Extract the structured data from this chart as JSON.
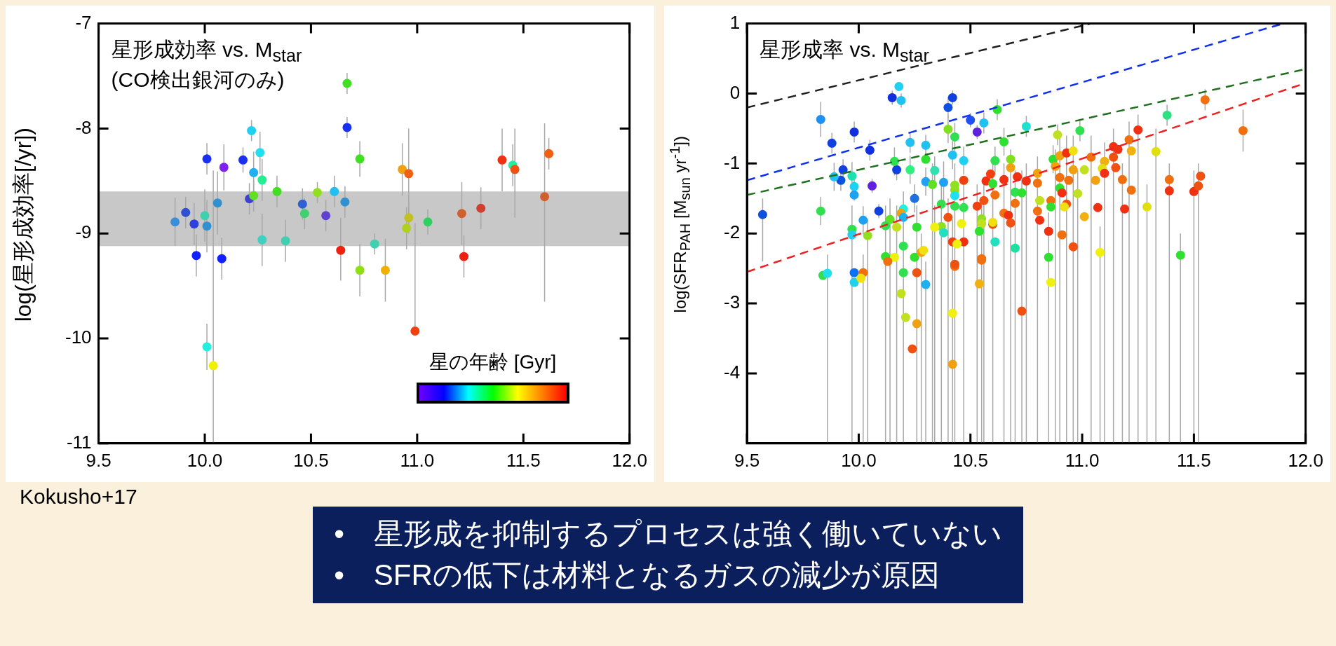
{
  "chart_data": [
    {
      "type": "scatter",
      "title": "星形成効率 vs. M$_{star}$",
      "subtitle": "(CO検出銀河のみ)",
      "ylabel": "log(星形成効率[/yr])",
      "clabel": "星の年齢 [Gyr]",
      "marker": "circle",
      "xlim": [
        9.5,
        12.0
      ],
      "ylim": [
        -11,
        -7
      ],
      "xticks": [
        9.5,
        {
          "value": 10,
          "label": "10.0"
        },
        10.5,
        {
          "value": 11,
          "label": "11.0"
        },
        11.5,
        {
          "value": 12,
          "label": "12.0"
        }
      ],
      "yticks": [
        -11,
        -10,
        -9,
        -8,
        -7
      ],
      "bands": [
        {
          "axis": "y",
          "from": -9.12,
          "to": -8.6,
          "color": "#c8c8c8"
        }
      ],
      "annotations": [
        "Kokusho+17"
      ],
      "series": [
        {
          "type": "scatter",
          "x": [
            9.86,
            9.91,
            9.95,
            9.96,
            10.0,
            10.01,
            10.01,
            10.06,
            10.08,
            10.09,
            10.18,
            10.21,
            10.22,
            10.23,
            10.23,
            10.26,
            10.27,
            10.27,
            10.34,
            10.38,
            null,
            10.46,
            10.47,
            10.53,
            10.57,
            10.61,
            10.64,
            10.66,
            10.67,
            10.67,
            10.73,
            null,
            10.73,
            10.8,
            10.85,
            10.93,
            10.96,
            10.96,
            10.95,
            11.05,
            11.21,
            11.22,
            11.3,
            11.4,
            11.45,
            11.46,
            11.6,
            11.62,
            10.99,
            10.01,
            10.04
          ],
          "values": [
            -8.89,
            -8.8,
            -8.91,
            -9.21,
            -8.83,
            -8.29,
            -8.93,
            -8.71,
            -9.24,
            -8.37,
            -8.3,
            -8.67,
            -8.02,
            -8.42,
            -8.64,
            -8.23,
            -8.49,
            -9.06,
            -8.6,
            -9.07,
            null,
            -8.72,
            -8.81,
            -8.61,
            -8.83,
            -8.6,
            -9.16,
            -8.7,
            -7.99,
            -7.57,
            -8.29,
            null,
            -9.35,
            -9.1,
            -9.35,
            -8.39,
            -8.43,
            -8.85,
            -8.95,
            -8.89,
            -8.81,
            -9.22,
            -8.76,
            -8.3,
            -8.35,
            -8.39,
            -8.65,
            -8.24,
            -9.93,
            -10.08,
            -10.26
          ],
          "colors": [
            "#3a8fd8",
            "#3050d0",
            "#3040e0",
            "#1020ff",
            "#40d0b0",
            "#1a30f0",
            "#3090d0",
            "#3090d0",
            "#1020ff",
            "#8020f0",
            "#1a30f0",
            "#4040d0",
            "#20d0f0",
            "#20b0f0",
            "#60e020",
            "#20e0f0",
            "#20f090",
            "#40d0c0",
            "#40e020",
            "#40d0b0",
            "#3090d0",
            "#3060d0",
            "#40d070",
            "#90e020",
            "#6040d0",
            "#20c0f0",
            "#f02010",
            "#3090d0",
            "#1a30f0",
            "#40e020",
            "#40e020",
            "#f0b000",
            "#90e010",
            "#40d0b0",
            "#f0b000",
            "#f0a010",
            "#f06010",
            "#c0c020",
            "#b0d020",
            "#30d060",
            "#d06030",
            "#f02010",
            "#d04030",
            "#f03010",
            "#20f0a0",
            "#f05010",
            "#d06030",
            "#f06010",
            "#f04010",
            "#20f0e0",
            "#f0f000"
          ],
          "errors": [
            0.23,
            0.15,
            0.2,
            0.2,
            0.25,
            0.15,
            0.25,
            0.3,
            0.2,
            0.22,
            0.12,
            0.15,
            0.1,
            0.2,
            0.15,
            0.2,
            0.2,
            0.25,
            0.15,
            0.2,
            null,
            0.15,
            0.15,
            0.1,
            0.15,
            0.15,
            [
              -9.45,
              -8.85
            ],
            0.15,
            0.1,
            0.1,
            0.17,
            null,
            0.25,
            0.1,
            0.3,
            0.25,
            [
              -8.9,
              -8.0
            ],
            [
              -9.0,
              -8.7
            ],
            0.2,
            0.12,
            0.3,
            0.2,
            0.2,
            0.3,
            0.2,
            [
              -8.85,
              -8.0
            ],
            [
              -9.65,
              -7.95
            ],
            0.15,
            [
              -9.95,
              -8.9
            ],
            0.22,
            [
              -11,
              -8.4
            ]
          ]
        }
      ]
    },
    {
      "type": "scatter",
      "title": "星形成率 vs. M$_{star}$",
      "ylabel": "log(SFR$_{PAH}$ [M$_{sun}$ yr$^{-1}$])",
      "marker": "circle",
      "xlim": [
        9.5,
        12.0
      ],
      "ylim": [
        -5,
        1
      ],
      "xticks": [
        9.5,
        {
          "value": 10,
          "label": "10.0"
        },
        10.5,
        {
          "value": 11,
          "label": "11.0"
        },
        11.5,
        {
          "value": 12,
          "label": "12.0"
        }
      ],
      "yticks": [
        -4,
        -3,
        -2,
        -1,
        0,
        1
      ],
      "series": [
        {
          "type": "scatter",
          "x": [
            9.83,
            9.98,
            10.15,
            10.18,
            10.19,
            10.42,
            10.4,
            10.62,
            10.5,
            10.56,
            10.53,
            9.57,
            9.88,
            10.05,
            9.93,
            9.92,
            9.89,
            9.97,
            9.98,
            9.98,
            10.06,
            10.09,
            9.83,
            10.02,
            9.97,
            9.97,
            10.04,
            10.17,
            10.23,
            10.16,
            10.23,
            10.3,
            10.3,
            10.34,
            10.4,
            10.43,
            10.42,
            10.47,
            10.3,
            10.38,
            10.33,
            10.43,
            10.43,
            10.43,
            10.47,
            10.25,
            10.2,
            10.19,
            10.2,
            10.14,
            10.12,
            10.17,
            10.26,
            10.37,
            10.43,
            10.47,
            10.4,
            10.37,
            10.34,
            10.38,
            10.46,
            10.2,
            10.12,
            10.16,
            10.13,
            10.25,
            10.28,
            10.29,
            10.42,
            10.47,
            10.44,
            10.43,
            10.53,
            10.56,
            10.57,
            10.59,
            10.6,
            10.65,
            10.61,
            10.61,
            10.55,
            10.55,
            10.54,
            10.6,
            10.6,
            10.61,
            10.55,
            null,
            10.65,
            10.68,
            10.68,
            10.71,
            10.75,
            10.7,
            10.73,
            10.7,
            10.65,
            10.67,
            10.68,
            10.7,
            10.75,
            10.8,
            10.8,
            10.81,
            10.8,
            10.81,
            10.85,
            10.86,
            10.86,
            10.85,
            10.87,
            10.88,
            10.9,
            10.93,
            10.96,
            10.89,
            10.99,
            10.9,
            10.9,
            10.91,
            10.94,
            10.96,
            11.01,
            10.98,
            10.93,
            10.92,
            10.91,
            10.96,
            11.01,
            11.08,
            11.04,
            11.06,
            11.1,
            11.09,
            11.1,
            11.14,
            11.16,
            11.14,
            11.15,
            11.18,
            11.22,
            11.07,
            11.19,
            11.21,
            11.25,
            11.22,
            11.33,
            11.29,
            11.39,
            11.39,
            11.38,
            11.44,
            11.5,
            11.52,
            11.53,
            11.55,
            11.72,
            9.84,
            9.86,
            9.98,
            9.98,
            10.02,
            10.01,
            10.2,
            10.26,
            10.3,
            10.19,
            10.21,
            10.26,
            10.24,
            10.42,
            10.42,
            10.43,
            10.55,
            10.54,
            10.73,
            10.86
          ],
          "values": [
            -0.37,
            -0.55,
            -0.06,
            0.1,
            -0.1,
            -0.06,
            -0.2,
            -0.23,
            -0.38,
            -0.42,
            -0.55,
            -1.73,
            -0.71,
            -0.81,
            -1.09,
            -1.24,
            -1.19,
            -1.18,
            -1.33,
            -1.45,
            -1.32,
            -1.68,
            -1.68,
            -1.81,
            -1.94,
            -2.02,
            -2.03,
            -1.09,
            -0.7,
            -0.97,
            -1.09,
            -0.74,
            -0.94,
            -1.1,
            -0.51,
            -0.62,
            -0.88,
            -0.96,
            -1.26,
            -1.27,
            -1.3,
            -1.31,
            -1.38,
            -1.46,
            -1.24,
            -1.5,
            -1.65,
            -1.71,
            -1.77,
            -1.8,
            -1.89,
            -1.91,
            -1.91,
            -1.58,
            -1.61,
            -1.63,
            -1.77,
            -1.9,
            -1.91,
            -1.99,
            -1.86,
            -2.18,
            -2.33,
            -2.34,
            -2.4,
            -2.34,
            -2.27,
            -2.24,
            -2.12,
            -2.12,
            -2.15,
            -2.47,
            -1.61,
            -1.53,
            -1.25,
            -1.15,
            -1.29,
            -1.23,
            -0.96,
            -1.45,
            -1.79,
            -1.86,
            -1.97,
            -1.87,
            -1.84,
            -2.12,
            -2.38,
            null,
            -0.69,
            -0.94,
            -1.06,
            -1.19,
            -1.25,
            -1.41,
            -1.42,
            -1.57,
            -1.71,
            -1.74,
            -1.85,
            -2.21,
            -0.47,
            -1.14,
            -1.28,
            -1.53,
            -1.68,
            -1.81,
            -1.97,
            -1.53,
            -1.62,
            -2.34,
            -0.94,
            -1.04,
            -0.89,
            -0.85,
            -0.82,
            -0.59,
            -0.53,
            -1.2,
            -1.35,
            -1.42,
            -1.24,
            -1.09,
            -1.09,
            -1.43,
            -1.58,
            -1.62,
            -2.02,
            -2.19,
            -1.76,
            -2.27,
            -0.91,
            -1.24,
            -0.97,
            -1.07,
            -1.14,
            -0.76,
            -0.8,
            -0.91,
            -1.06,
            -1.23,
            -1.38,
            -1.63,
            -1.65,
            -0.66,
            -0.52,
            -0.82,
            -0.83,
            -1.62,
            -1.23,
            -1.39,
            -0.31,
            -2.31,
            -1.4,
            -1.32,
            -1.18,
            -0.09,
            -0.53,
            -2.6,
            -2.57,
            -2.56,
            -2.7,
            -2.56,
            -2.64,
            -2.56,
            -2.56,
            -2.73,
            -2.86,
            -3.2,
            -3.29,
            -3.65,
            -3.14,
            -3.87,
            -2.44,
            -2.36,
            -2.72,
            -3.11,
            -2.7
          ],
          "colors": [
            "#2090f0",
            "#1030e0",
            "#1030e0",
            "#20d0f0",
            "#20c0f0",
            "#1040e0",
            "#1050e0",
            "#30e030",
            "#2050f0",
            "#20c0f0",
            "#6020e0",
            "#1050e0",
            "#1040e0",
            "#1030e0",
            "#1040e0",
            "#1050e0",
            "#20c0f0",
            "#20e0b0",
            "#20d0f0",
            "#20a0f0",
            "#6020e0",
            "#1040e0",
            "#30e050",
            "#20a0f0",
            "#30e050",
            "#20d0f0",
            "#90e020",
            "#1040e0",
            "#20c0f0",
            "#30e050",
            "#30f080",
            "#20c0f0",
            "#30e030",
            "#30e0b0",
            "#80e020",
            "#30e050",
            "#20c0f0",
            "#20d0f0",
            "#20a0f0",
            "#20a0f0",
            "#60e020",
            "#90e020",
            "#90e020",
            "#20e0f0",
            "#f04010",
            "#2070e0",
            "#20f0e0",
            "#f0a010",
            "#20b0f0",
            "#60e020",
            "#30e050",
            "#c0e020",
            "#30e030",
            "#30e050",
            "#30e050",
            "#30e050",
            "#f05010",
            "#90e020",
            "#f0f010",
            "#20e0c0",
            "#f0f010",
            "#30e050",
            "#30e030",
            "#f0f010",
            "#f07010",
            "#30e030",
            "#f0a010",
            "#f0e010",
            "#f04010",
            "#f03010",
            "#f0f010",
            "#f07010",
            "#f04010",
            "#f05010",
            "#f03010",
            "#f04010",
            "#30e030",
            "#f03010",
            "#30e050",
            "#f07010",
            "#90e020",
            "#c0e020",
            "#30e030",
            "#f05010",
            "#f0e010",
            "#20e0c0",
            "#f07010",
            "#2090f0",
            "#30e030",
            "#80e020",
            "#f0a010",
            "#f03010",
            "#f03010",
            "#30e050",
            "#30e030",
            "#f07010",
            "#f07010",
            "#f03010",
            "#f05010",
            "#20e0a0",
            "#20e0d0",
            "#f0a010",
            "#f07010",
            "#c0e020",
            "#f07010",
            "#f03010",
            "#f03010",
            "#f07010",
            "#30e030",
            "#30e030",
            "#30e030",
            "#f0a010",
            "#f0a010",
            "#f03010",
            "#f0e010",
            "#c0e020",
            "#30e050",
            "#f07010",
            "#30e030",
            "#f03010",
            "#f07010",
            "#f0a010",
            "#c0e020",
            "#c0e020",
            "#f05010",
            "#f0e010",
            "#f07010",
            "#f05010",
            "#f0b010",
            "#f0f010",
            "#f07010",
            "#f0a010",
            "#f0b010",
            "#e0e010",
            "#f03010",
            "#f03010",
            "#f03010",
            "#f05010",
            "#f05010",
            "#f07010",
            "#f07010",
            "#f03010",
            "#f03010",
            "#f07010",
            "#f03010",
            "#f0b010",
            "#e0e010",
            "#e0e010",
            "#f07010",
            "#f03010",
            "#30e080",
            "#30e030",
            "#f03010",
            "#f05010",
            "#f05010",
            "#f07010",
            "#f07010",
            "#30e050",
            "#20e0f0",
            "#1070f0",
            "#20d0f0",
            "#f07010",
            "#f0e010",
            "#30e050",
            "#f05010",
            "#20b0f0",
            "#c0e020",
            "#c0e020",
            "#f0a010",
            "#f05010",
            "#f0f010",
            "#f0a010",
            "#f05010",
            "#f07010",
            "#f0b010",
            "#f05010",
            "#f0f010"
          ],
          "errors": [
            0.25,
            0.15,
            0.1,
            null,
            0.1,
            0.1,
            0.15,
            0.15,
            0.1,
            0.15,
            0.1,
            [
              -2.4,
              -1.5
            ],
            0.15,
            0.15,
            0.15,
            0.15,
            0.2,
            0.2,
            0.2,
            null,
            0.1,
            0.1,
            0.2,
            0.2,
            [
              -5,
              -1.6
            ],
            null,
            [
              -5,
              -1.8
            ],
            0.15,
            0.15,
            0.2,
            0.2,
            0.15,
            null,
            0.2,
            0.2,
            0.2,
            0.2,
            0.2,
            0.2,
            0.3,
            [
              -5,
              -1.0
            ],
            [
              -5,
              -1.0
            ],
            null,
            null,
            [
              -5,
              -1.24
            ],
            0.2,
            [
              -5,
              -1.4
            ],
            null,
            null,
            [
              -5,
              -1.5
            ],
            [
              -5,
              -1.6
            ],
            [
              -5,
              -1.6
            ],
            [
              -5,
              -1.6
            ],
            [
              -5,
              -1.3
            ],
            null,
            null,
            [
              -5,
              -1.5
            ],
            null,
            [
              -5,
              -1.6
            ],
            null,
            null,
            null,
            null,
            null,
            null,
            null,
            [
              -5,
              -2.0
            ],
            null,
            [
              -5,
              -1.8
            ],
            null,
            null,
            null,
            [
              -5,
              -1.3
            ],
            [
              -5,
              -1.2
            ],
            null,
            null,
            [
              -5,
              -1.0
            ],
            [
              -5,
              -1.0
            ],
            0.2,
            null,
            [
              -5,
              -1.5
            ],
            null,
            null,
            null,
            null,
            null,
            null,
            null,
            0.2,
            null,
            [
              -5,
              -0.8
            ],
            null,
            [
              -5,
              -1.0
            ],
            [
              -5,
              -1.1
            ],
            [
              -5,
              -1.1
            ],
            null,
            null,
            null,
            null,
            null,
            0.15,
            [
              -5,
              -0.9
            ],
            null,
            null,
            null,
            null,
            [
              -5,
              -1.7
            ],
            null,
            null,
            null,
            0.2,
            [
              -5,
              -0.8
            ],
            [
              -5,
              -0.6
            ],
            [
              -5,
              -0.6
            ],
            [
              -5,
              -0.6
            ],
            0.15,
            0.15,
            null,
            null,
            null,
            null,
            null,
            null,
            [
              -5,
              -1.1
            ],
            null,
            null,
            null,
            null,
            null,
            [
              -5,
              -1.9
            ],
            [
              -5,
              -0.6
            ],
            null,
            [
              -5,
              -0.7
            ],
            null,
            null,
            [
              -5,
              -0.5
            ],
            null,
            null,
            null,
            [
              -5,
              -1.0
            ],
            null,
            null,
            null,
            [
              -5,
              -0.4
            ],
            [
              -5,
              -0.3
            ],
            null,
            [
              -5,
              -0.5
            ],
            [
              -5,
              -1.3
            ],
            [
              -5,
              -1.0
            ],
            null,
            0.15,
            [
              -5,
              -2.0
            ],
            [
              -5,
              -1.1
            ],
            [
              -5,
              -1.0
            ],
            null,
            0.15,
            0.3,
            null,
            [
              -5,
              -2.3
            ],
            null,
            null,
            [
              -5,
              -2.3
            ],
            null,
            null,
            null,
            [
              -5,
              -2.4
            ],
            null,
            null,
            null,
            null,
            null,
            null,
            null,
            null,
            null,
            null,
            null
          ]
        },
        {
          "type": "line",
          "color": "#202020",
          "line_style": "dashed",
          "marker": "none",
          "x": [
            9.5,
            11.04
          ],
          "values": [
            -0.2,
            1.0
          ]
        },
        {
          "type": "line",
          "color": "#1030f0",
          "line_style": "dashed",
          "marker": "none",
          "x": [
            9.5,
            11.9
          ],
          "values": [
            -1.24,
            1.0
          ]
        },
        {
          "type": "line",
          "color": "#207020",
          "line_style": "dashed",
          "marker": "none",
          "x": [
            9.5,
            12.0
          ],
          "values": [
            -1.45,
            0.35
          ]
        },
        {
          "type": "line",
          "color": "#f02020",
          "line_style": "dashed",
          "marker": "none",
          "x": [
            9.5,
            12.0
          ],
          "values": [
            -2.55,
            0.15
          ]
        }
      ]
    },
    {
      "type": "other",
      "annotations": [
        "•　星形成を抑制するプロセスは強く働いていない",
        "•　SFRの低下は材料となるガスの減少が原因"
      ]
    }
  ]
}
